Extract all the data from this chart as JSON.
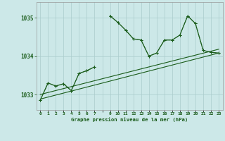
{
  "title": "Graphe pression niveau de la mer (hPa)",
  "bg_color": "#cce8e8",
  "grid_color": "#aacccc",
  "line_color": "#1a5c1a",
  "x_labels": [
    "0",
    "1",
    "2",
    "3",
    "4",
    "5",
    "6",
    "7",
    "",
    "9",
    "10",
    "11",
    "12",
    "13",
    "14",
    "15",
    "16",
    "17",
    "18",
    "19",
    "20",
    "21",
    "22",
    "23"
  ],
  "xlim": [
    -0.5,
    23.5
  ],
  "ylim": [
    1032.6,
    1035.4
  ],
  "yticks": [
    1033,
    1034,
    1035
  ],
  "series_dotted": [
    1032.85,
    1033.3,
    1033.22,
    1033.28,
    1033.1,
    1033.55,
    1033.62,
    1033.72,
    null,
    1035.05,
    1034.88,
    1034.68,
    1034.45,
    1034.42,
    1034.0,
    1034.08,
    1034.42,
    1034.42,
    1034.55,
    1035.05,
    1034.85,
    1034.15,
    1034.1,
    1034.08
  ],
  "series_solid": [
    null,
    null,
    null,
    null,
    1033.1,
    null,
    null,
    1033.72,
    null,
    1035.05,
    1034.88,
    1034.68,
    1034.45,
    1034.42,
    1034.0,
    1034.08,
    1034.42,
    1034.42,
    1034.55,
    1035.05,
    1034.85,
    1034.15,
    1034.1,
    1034.08
  ],
  "trend1_x": [
    0,
    23
  ],
  "trend1_y": [
    1032.88,
    1034.08
  ],
  "trend2_x": [
    0,
    23
  ],
  "trend2_y": [
    1033.0,
    1034.18
  ]
}
